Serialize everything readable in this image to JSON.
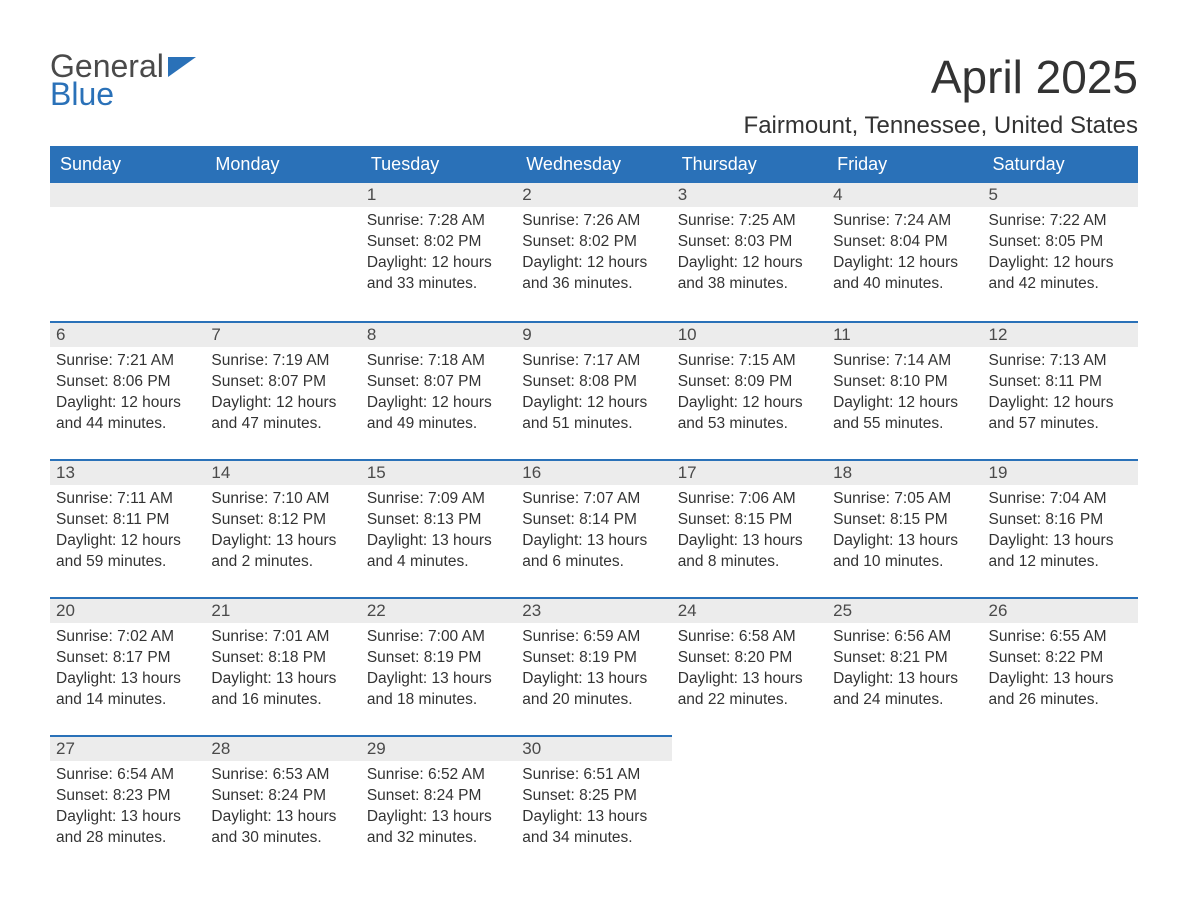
{
  "logo": {
    "line1": "General",
    "line2": "Blue",
    "flag_color": "#2a71b8"
  },
  "title": "April 2025",
  "location": "Fairmount, Tennessee, United States",
  "colors": {
    "header_bg": "#2a71b8",
    "header_text": "#ffffff",
    "daynum_bg": "#ececec",
    "week_border": "#2a71b8",
    "text": "#333333"
  },
  "columns": [
    "Sunday",
    "Monday",
    "Tuesday",
    "Wednesday",
    "Thursday",
    "Friday",
    "Saturday"
  ],
  "weeks": [
    [
      {
        "day": null
      },
      {
        "day": null
      },
      {
        "day": "1",
        "sunrise": "Sunrise: 7:28 AM",
        "sunset": "Sunset: 8:02 PM",
        "daylight1": "Daylight: 12 hours",
        "daylight2": "and 33 minutes."
      },
      {
        "day": "2",
        "sunrise": "Sunrise: 7:26 AM",
        "sunset": "Sunset: 8:02 PM",
        "daylight1": "Daylight: 12 hours",
        "daylight2": "and 36 minutes."
      },
      {
        "day": "3",
        "sunrise": "Sunrise: 7:25 AM",
        "sunset": "Sunset: 8:03 PM",
        "daylight1": "Daylight: 12 hours",
        "daylight2": "and 38 minutes."
      },
      {
        "day": "4",
        "sunrise": "Sunrise: 7:24 AM",
        "sunset": "Sunset: 8:04 PM",
        "daylight1": "Daylight: 12 hours",
        "daylight2": "and 40 minutes."
      },
      {
        "day": "5",
        "sunrise": "Sunrise: 7:22 AM",
        "sunset": "Sunset: 8:05 PM",
        "daylight1": "Daylight: 12 hours",
        "daylight2": "and 42 minutes."
      }
    ],
    [
      {
        "day": "6",
        "sunrise": "Sunrise: 7:21 AM",
        "sunset": "Sunset: 8:06 PM",
        "daylight1": "Daylight: 12 hours",
        "daylight2": "and 44 minutes."
      },
      {
        "day": "7",
        "sunrise": "Sunrise: 7:19 AM",
        "sunset": "Sunset: 8:07 PM",
        "daylight1": "Daylight: 12 hours",
        "daylight2": "and 47 minutes."
      },
      {
        "day": "8",
        "sunrise": "Sunrise: 7:18 AM",
        "sunset": "Sunset: 8:07 PM",
        "daylight1": "Daylight: 12 hours",
        "daylight2": "and 49 minutes."
      },
      {
        "day": "9",
        "sunrise": "Sunrise: 7:17 AM",
        "sunset": "Sunset: 8:08 PM",
        "daylight1": "Daylight: 12 hours",
        "daylight2": "and 51 minutes."
      },
      {
        "day": "10",
        "sunrise": "Sunrise: 7:15 AM",
        "sunset": "Sunset: 8:09 PM",
        "daylight1": "Daylight: 12 hours",
        "daylight2": "and 53 minutes."
      },
      {
        "day": "11",
        "sunrise": "Sunrise: 7:14 AM",
        "sunset": "Sunset: 8:10 PM",
        "daylight1": "Daylight: 12 hours",
        "daylight2": "and 55 minutes."
      },
      {
        "day": "12",
        "sunrise": "Sunrise: 7:13 AM",
        "sunset": "Sunset: 8:11 PM",
        "daylight1": "Daylight: 12 hours",
        "daylight2": "and 57 minutes."
      }
    ],
    [
      {
        "day": "13",
        "sunrise": "Sunrise: 7:11 AM",
        "sunset": "Sunset: 8:11 PM",
        "daylight1": "Daylight: 12 hours",
        "daylight2": "and 59 minutes."
      },
      {
        "day": "14",
        "sunrise": "Sunrise: 7:10 AM",
        "sunset": "Sunset: 8:12 PM",
        "daylight1": "Daylight: 13 hours",
        "daylight2": "and 2 minutes."
      },
      {
        "day": "15",
        "sunrise": "Sunrise: 7:09 AM",
        "sunset": "Sunset: 8:13 PM",
        "daylight1": "Daylight: 13 hours",
        "daylight2": "and 4 minutes."
      },
      {
        "day": "16",
        "sunrise": "Sunrise: 7:07 AM",
        "sunset": "Sunset: 8:14 PM",
        "daylight1": "Daylight: 13 hours",
        "daylight2": "and 6 minutes."
      },
      {
        "day": "17",
        "sunrise": "Sunrise: 7:06 AM",
        "sunset": "Sunset: 8:15 PM",
        "daylight1": "Daylight: 13 hours",
        "daylight2": "and 8 minutes."
      },
      {
        "day": "18",
        "sunrise": "Sunrise: 7:05 AM",
        "sunset": "Sunset: 8:15 PM",
        "daylight1": "Daylight: 13 hours",
        "daylight2": "and 10 minutes."
      },
      {
        "day": "19",
        "sunrise": "Sunrise: 7:04 AM",
        "sunset": "Sunset: 8:16 PM",
        "daylight1": "Daylight: 13 hours",
        "daylight2": "and 12 minutes."
      }
    ],
    [
      {
        "day": "20",
        "sunrise": "Sunrise: 7:02 AM",
        "sunset": "Sunset: 8:17 PM",
        "daylight1": "Daylight: 13 hours",
        "daylight2": "and 14 minutes."
      },
      {
        "day": "21",
        "sunrise": "Sunrise: 7:01 AM",
        "sunset": "Sunset: 8:18 PM",
        "daylight1": "Daylight: 13 hours",
        "daylight2": "and 16 minutes."
      },
      {
        "day": "22",
        "sunrise": "Sunrise: 7:00 AM",
        "sunset": "Sunset: 8:19 PM",
        "daylight1": "Daylight: 13 hours",
        "daylight2": "and 18 minutes."
      },
      {
        "day": "23",
        "sunrise": "Sunrise: 6:59 AM",
        "sunset": "Sunset: 8:19 PM",
        "daylight1": "Daylight: 13 hours",
        "daylight2": "and 20 minutes."
      },
      {
        "day": "24",
        "sunrise": "Sunrise: 6:58 AM",
        "sunset": "Sunset: 8:20 PM",
        "daylight1": "Daylight: 13 hours",
        "daylight2": "and 22 minutes."
      },
      {
        "day": "25",
        "sunrise": "Sunrise: 6:56 AM",
        "sunset": "Sunset: 8:21 PM",
        "daylight1": "Daylight: 13 hours",
        "daylight2": "and 24 minutes."
      },
      {
        "day": "26",
        "sunrise": "Sunrise: 6:55 AM",
        "sunset": "Sunset: 8:22 PM",
        "daylight1": "Daylight: 13 hours",
        "daylight2": "and 26 minutes."
      }
    ],
    [
      {
        "day": "27",
        "sunrise": "Sunrise: 6:54 AM",
        "sunset": "Sunset: 8:23 PM",
        "daylight1": "Daylight: 13 hours",
        "daylight2": "and 28 minutes."
      },
      {
        "day": "28",
        "sunrise": "Sunrise: 6:53 AM",
        "sunset": "Sunset: 8:24 PM",
        "daylight1": "Daylight: 13 hours",
        "daylight2": "and 30 minutes."
      },
      {
        "day": "29",
        "sunrise": "Sunrise: 6:52 AM",
        "sunset": "Sunset: 8:24 PM",
        "daylight1": "Daylight: 13 hours",
        "daylight2": "and 32 minutes."
      },
      {
        "day": "30",
        "sunrise": "Sunrise: 6:51 AM",
        "sunset": "Sunset: 8:25 PM",
        "daylight1": "Daylight: 13 hours",
        "daylight2": "and 34 minutes."
      },
      {
        "day": null
      },
      {
        "day": null
      },
      {
        "day": null
      }
    ]
  ]
}
